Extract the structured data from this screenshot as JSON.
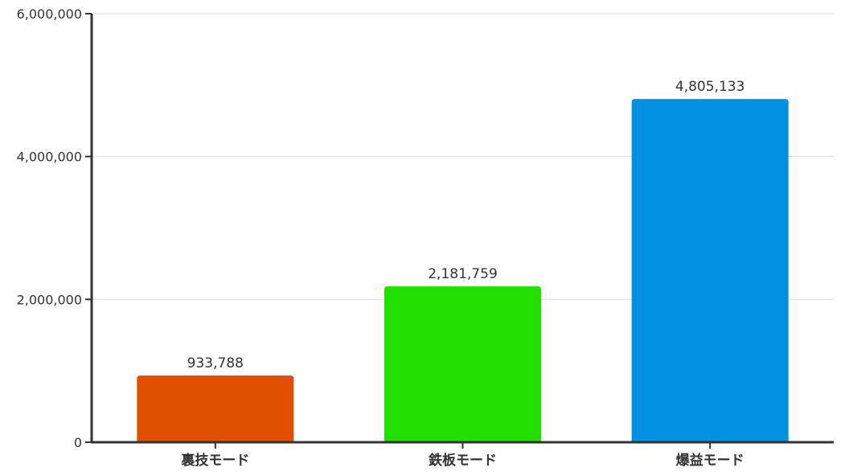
{
  "chart_data": {
    "type": "bar",
    "categories": [
      "裏技モード",
      "鉄板モード",
      "爆益モード"
    ],
    "values": [
      933788,
      2181759,
      4805133
    ],
    "value_labels": [
      "933,788",
      "2,181,759",
      "4,805,133"
    ],
    "colors": [
      "#e05000",
      "#22e000",
      "#0090e0"
    ],
    "ylim": [
      0,
      6000000
    ],
    "yticks": [
      0,
      2000000,
      4000000,
      6000000
    ],
    "ytick_labels": [
      "0",
      "2,000,000",
      "4,000,000",
      "6,000,000"
    ],
    "grid": true,
    "title": "",
    "xlabel": "",
    "ylabel": ""
  }
}
